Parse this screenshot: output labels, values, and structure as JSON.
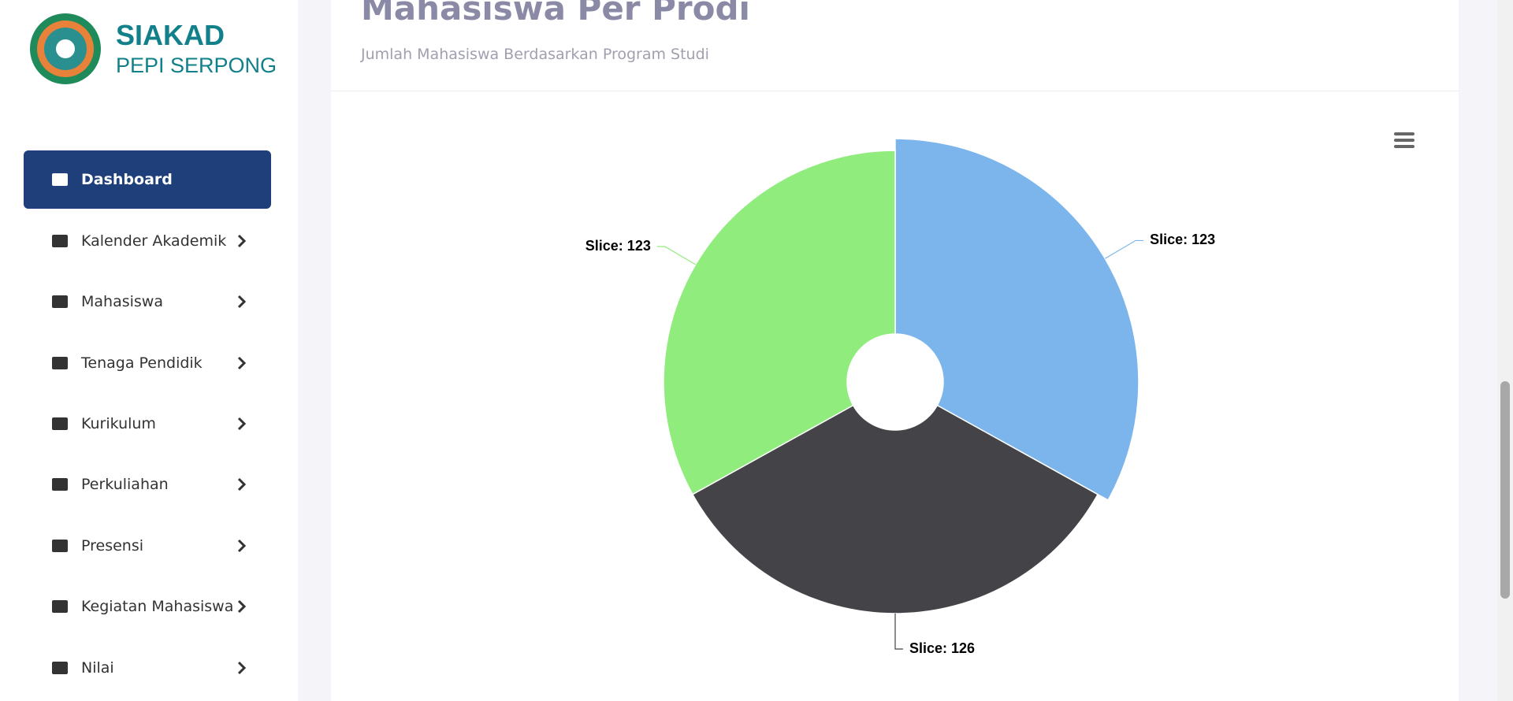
{
  "sidebar": {
    "brand": {
      "name": "SIAKAD",
      "subname": "PEPI SERPONG"
    },
    "menu": [
      "Dashboard",
      "Kalender Akademik",
      "Mahasiswa",
      "Tenaga Pendidik",
      "Kurikulum",
      "Perkuliahan",
      "Presensi",
      "Kegiatan Mahasiswa",
      "Nilai"
    ]
  },
  "chart_data": {
    "type": "pie",
    "title": "Mahasiswa Per Prodi",
    "subtitle": "Jumlah Mahasiswa Berdasarkan Program Studi",
    "values": [
      123,
      126,
      123
    ],
    "value_labels": [
      "Slice: 123",
      "Slice: 126",
      "Slice: 123"
    ],
    "colors": [
      "#7cb5ec",
      "#434348",
      "#90ed7d"
    ]
  }
}
